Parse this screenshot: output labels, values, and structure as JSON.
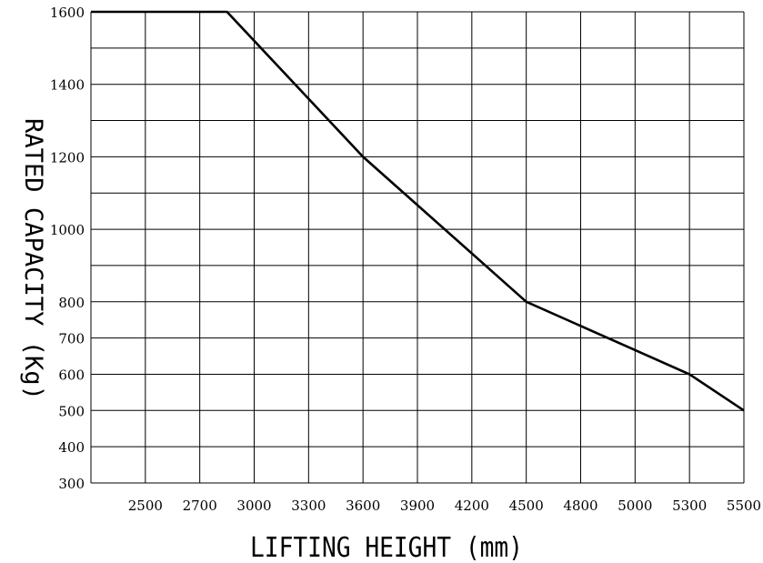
{
  "chart_data": {
    "type": "line",
    "xlabel": "LIFTING HEIGHT (mm)",
    "ylabel": "RATED CAPACITY (Kg)",
    "x_ticks": [
      "2500",
      "2700",
      "3000",
      "3300",
      "3600",
      "3900",
      "4200",
      "4500",
      "4800",
      "5000",
      "5300",
      "5500"
    ],
    "y_ticks": [
      "300",
      "400",
      "500",
      "600",
      "700",
      "800",
      "1000",
      "1200",
      "1400",
      "1600"
    ],
    "grid": true,
    "series": [
      {
        "points": [
          {
            "x": "2300",
            "y": 1600
          },
          {
            "x": "2850",
            "y": 1600
          },
          {
            "x": "3600",
            "y": 1200
          },
          {
            "x": "4500",
            "y": 800
          },
          {
            "x": "5300",
            "y": 600
          },
          {
            "x": "5500",
            "y": 500
          }
        ]
      }
    ]
  }
}
